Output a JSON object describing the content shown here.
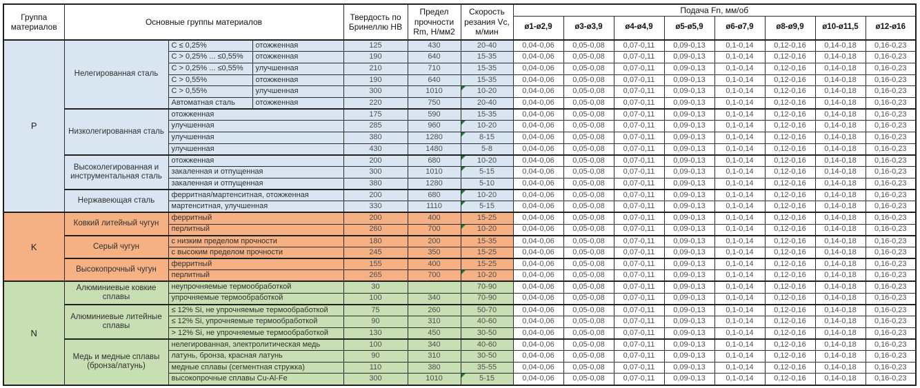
{
  "header": {
    "group_col": "Группа материалов",
    "materials_col": "Основные группы материалов",
    "hardness_col": "Твердость по Бринеллю НВ",
    "strength_col": "Предел прочности Rm, Н/мм2",
    "speed_col": "Скорость резания Vc, м/мин",
    "feed_group": "Подача Fn, мм/об",
    "diameters": [
      "ø1-ø2,9",
      "ø3-ø3,9",
      "ø4-ø4,9",
      "ø5-ø5,9",
      "ø6-ø7,9",
      "ø8-ø9,9",
      "ø10-ø11,5",
      "ø12-ø16"
    ]
  },
  "feed_values": [
    "0,04-0,06",
    "0,05-0,08",
    "0,07-0,11",
    "0,09-0,13",
    "0,1-0,14",
    "0,12-0,16",
    "0,14-0,18",
    "0,16-0,23"
  ],
  "colors": {
    "P": "#d9e6f2",
    "K": "#f5b183",
    "N": "#c8dfb3",
    "marker": "#1e7b34",
    "border": "#2b2b2b"
  },
  "groups": [
    {
      "letter": "P",
      "blocks": [
        {
          "label": "Нелегированная сталь",
          "rows": [
            {
              "cells": [
                "C ≤ 0,25%",
                "отожженная"
              ],
              "hb": "125",
              "rm": "430",
              "vc": "20-40",
              "marker": false
            },
            {
              "cells": [
                "C > 0,25% ... ≤0,55%",
                "отожженная"
              ],
              "hb": "190",
              "rm": "640",
              "vc": "15-35",
              "marker": false
            },
            {
              "cells": [
                "C > 0,25% ... ≤0,55%",
                "улучшенная"
              ],
              "hb": "210",
              "rm": "710",
              "vc": "15-35",
              "marker": false
            },
            {
              "cells": [
                "C > 0,55%",
                "отожженная"
              ],
              "hb": "190",
              "rm": "640",
              "vc": "15-35",
              "marker": false
            },
            {
              "cells": [
                "C > 0,55%",
                "улучшенная"
              ],
              "hb": "300",
              "rm": "1010",
              "vc": "10-20",
              "marker": true
            },
            {
              "cells": [
                "Автоматная сталь",
                "отожженная"
              ],
              "hb": "220",
              "rm": "750",
              "vc": "20-40",
              "marker": false
            }
          ]
        },
        {
          "label": "Низколегированная сталь",
          "rows": [
            {
              "cells": [
                "отожженная"
              ],
              "hb": "175",
              "rm": "590",
              "vc": "15-35",
              "marker": false
            },
            {
              "cells": [
                "улучшенная"
              ],
              "hb": "285",
              "rm": "960",
              "vc": "10-20",
              "marker": true
            },
            {
              "cells": [
                "улучшенная"
              ],
              "hb": "380",
              "rm": "1280",
              "vc": "8-15",
              "marker": true
            },
            {
              "cells": [
                "улучшенная"
              ],
              "hb": "430",
              "rm": "1480",
              "vc": "5-8",
              "marker": false
            }
          ]
        },
        {
          "label": "Высоколегированная и инструментальная сталь",
          "rows": [
            {
              "cells": [
                "отожженная"
              ],
              "hb": "200",
              "rm": "680",
              "vc": "10-20",
              "marker": true
            },
            {
              "cells": [
                "закаленная и отпущенная"
              ],
              "hb": "300",
              "rm": "1010",
              "vc": "5-15",
              "marker": true
            },
            {
              "cells": [
                "закаленная и отпущенная"
              ],
              "hb": "380",
              "rm": "1280",
              "vc": "5-10",
              "marker": false
            }
          ]
        },
        {
          "label": "Нержавеющая сталь",
          "rows": [
            {
              "cells": [
                "ферритная/мартенситная, отожженная"
              ],
              "hb": "200",
              "rm": "680",
              "vc": "10-20",
              "marker": true
            },
            {
              "cells": [
                "мартенситная, улучшенная"
              ],
              "hb": "330",
              "rm": "1110",
              "vc": "5-15",
              "marker": true
            }
          ]
        }
      ]
    },
    {
      "letter": "K",
      "blocks": [
        {
          "label": "Ковкий литейный чугун",
          "rows": [
            {
              "cells": [
                "ферритный"
              ],
              "hb": "200",
              "rm": "400",
              "vc": "15-25",
              "marker": false
            },
            {
              "cells": [
                "перлитный"
              ],
              "hb": "260",
              "rm": "700",
              "vc": "10-20",
              "marker": true
            }
          ]
        },
        {
          "label": "Серый чугун",
          "rows": [
            {
              "cells": [
                "с низким пределом прочности"
              ],
              "hb": "180",
              "rm": "200",
              "vc": "15-35",
              "marker": false
            },
            {
              "cells": [
                "с высоким пределом прочности"
              ],
              "hb": "245",
              "rm": "350",
              "vc": "15-25",
              "marker": false
            }
          ]
        },
        {
          "label": "Высокопрочный чугун",
          "rows": [
            {
              "cells": [
                "ферритный"
              ],
              "hb": "155",
              "rm": "400",
              "vc": "15-25",
              "marker": false
            },
            {
              "cells": [
                "перлитный"
              ],
              "hb": "265",
              "rm": "700",
              "vc": "10-20",
              "marker": true
            }
          ]
        }
      ]
    },
    {
      "letter": "N",
      "blocks": [
        {
          "label": "Алюминиевые ковкие сплавы",
          "rows": [
            {
              "cells": [
                "неупрочняемые термообработкой"
              ],
              "hb": "30",
              "rm": "",
              "vc": "70-90",
              "marker": false
            },
            {
              "cells": [
                "упрочняемые термообработкой"
              ],
              "hb": "100",
              "rm": "340",
              "vc": "70-90",
              "marker": false
            }
          ]
        },
        {
          "label": "Алюминиевые литейные сплавы",
          "rows": [
            {
              "cells": [
                "≤ 12% Si, не упрочняемые термообработкой"
              ],
              "hb": "75",
              "rm": "260",
              "vc": "50-70",
              "marker": false
            },
            {
              "cells": [
                "≤ 12% Si, упрочняемые термообработкой"
              ],
              "hb": "90",
              "rm": "310",
              "vc": "40-60",
              "marker": false
            },
            {
              "cells": [
                "> 12% Si, не упрочняемые термообработкой"
              ],
              "hb": "130",
              "rm": "450",
              "vc": "30-50",
              "marker": false
            }
          ]
        },
        {
          "label": "Медь и медные сплавы (бронза/латунь)",
          "rows": [
            {
              "cells": [
                "нелегированная, электролитическая медь"
              ],
              "hb": "100",
              "rm": "340",
              "vc": "40-60",
              "marker": false
            },
            {
              "cells": [
                "латунь, бронза, красная латунь"
              ],
              "hb": "90",
              "rm": "310",
              "vc": "30-50",
              "marker": false
            },
            {
              "cells": [
                "медные сплавы (сегментная стружка)"
              ],
              "hb": "110",
              "rm": "380",
              "vc": "35-55",
              "marker": false
            },
            {
              "cells": [
                "высокопрочные сплавы Cu-Al-Fe"
              ],
              "hb": "300",
              "rm": "1010",
              "vc": "5-15",
              "marker": true
            }
          ]
        }
      ]
    }
  ]
}
